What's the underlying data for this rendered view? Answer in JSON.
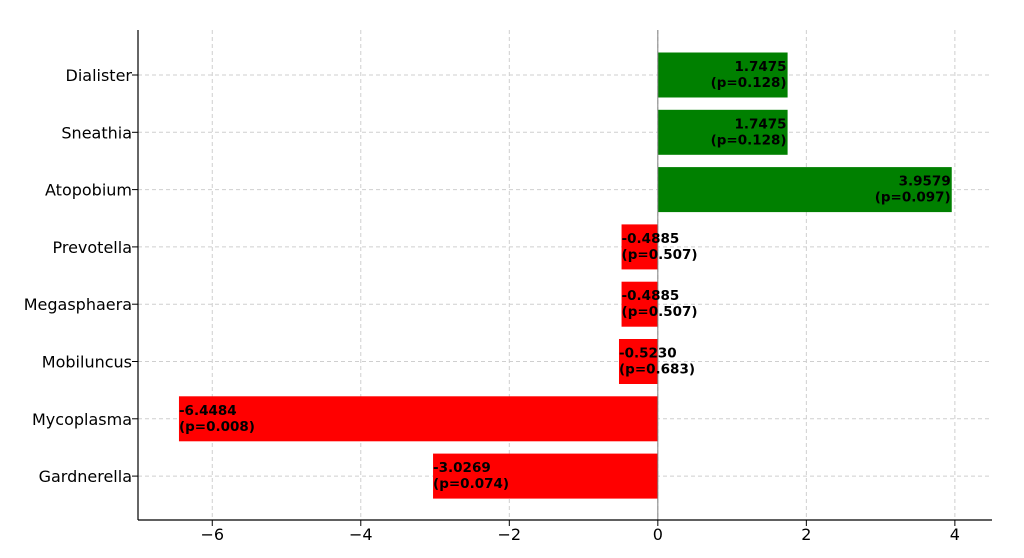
{
  "chart_data": {
    "type": "bar",
    "orientation": "horizontal",
    "title": "",
    "xlabel": "",
    "ylabel": "",
    "xlim": [
      -7,
      4.5
    ],
    "xticks": [
      -6,
      -4,
      -2,
      0,
      2,
      4
    ],
    "xtick_labels": [
      "−6",
      "−4",
      "−2",
      "0",
      "2",
      "4"
    ],
    "grid": true,
    "bars": [
      {
        "category": "Dialister",
        "value": 1.7475,
        "label_value": "1.7475",
        "label_p": "(p=0.128)",
        "color": "#008000"
      },
      {
        "category": "Sneathia",
        "value": 1.7475,
        "label_value": "1.7475",
        "label_p": "(p=0.128)",
        "color": "#008000"
      },
      {
        "category": "Atopobium",
        "value": 3.9579,
        "label_value": "3.9579",
        "label_p": "(p=0.097)",
        "color": "#008000"
      },
      {
        "category": "Prevotella",
        "value": -0.4885,
        "label_value": "-0.4885",
        "label_p": "(p=0.507)",
        "color": "#ff0000"
      },
      {
        "category": "Megasphaera",
        "value": -0.4885,
        "label_value": "-0.4885",
        "label_p": "(p=0.507)",
        "color": "#ff0000"
      },
      {
        "category": "Mobiluncus",
        "value": -0.523,
        "label_value": "-0.5230",
        "label_p": "(p=0.683)",
        "color": "#ff0000"
      },
      {
        "category": "Mycoplasma",
        "value": -6.4484,
        "label_value": "-6.4484",
        "label_p": "(p=0.008)",
        "color": "#ff0000"
      },
      {
        "category": "Gardnerella",
        "value": -3.0269,
        "label_value": "-3.0269",
        "label_p": "(p=0.074)",
        "color": "#ff0000"
      }
    ]
  }
}
